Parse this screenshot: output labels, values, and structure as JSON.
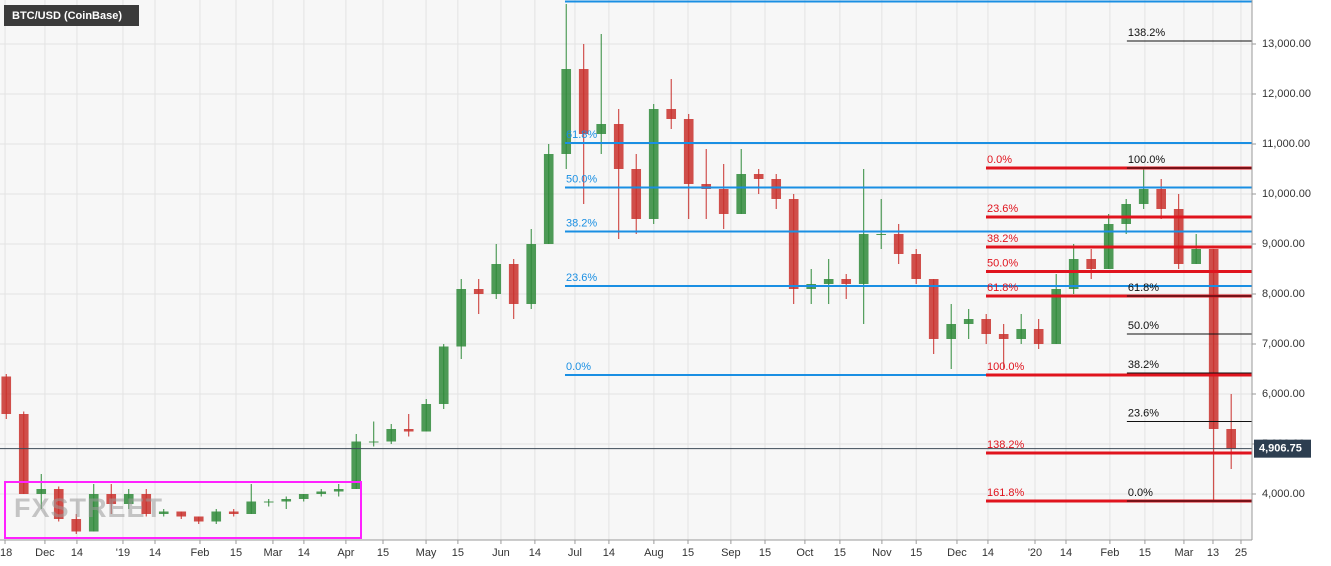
{
  "chart_data": {
    "type": "candlestick",
    "title": "BTC/USD (CoinBase)",
    "watermark": "FXSTREET",
    "up_color": "#2f8a3a",
    "down_color": "#c9302c",
    "grid": true,
    "open": [
      6350,
      5600,
      4000,
      4100,
      3500,
      3250,
      4000,
      3800,
      4000,
      3600,
      3650,
      3550,
      3450,
      3650,
      3600,
      3850,
      3850,
      3900,
      4000,
      4050,
      4100,
      5050,
      5050,
      5300,
      5250,
      5800,
      6950,
      8100,
      8000,
      8600,
      7800,
      9000,
      10800,
      12500,
      11200,
      11400,
      10500,
      9500,
      11700,
      11500,
      10200,
      10100,
      9600,
      10400,
      10300,
      9900,
      8100,
      8200,
      8300,
      8200,
      9200,
      9200,
      8800,
      8300,
      7100,
      7400,
      7500,
      7200,
      7100,
      7300,
      7000,
      8100,
      8700,
      8500,
      9400,
      9800,
      10100,
      9700,
      8600,
      8900,
      5300
    ],
    "high": [
      6400,
      5650,
      4400,
      4150,
      3600,
      4200,
      4200,
      4100,
      4100,
      3700,
      3650,
      3550,
      3700,
      3700,
      4200,
      3900,
      3950,
      4000,
      4100,
      4200,
      5200,
      5450,
      5400,
      5600,
      5900,
      7000,
      8300,
      8300,
      9000,
      8700,
      9300,
      11000,
      13800,
      13000,
      13200,
      11700,
      10800,
      11800,
      12300,
      11600,
      10900,
      10600,
      10900,
      10500,
      10400,
      10000,
      8500,
      8700,
      8400,
      10500,
      9900,
      9400,
      8900,
      8300,
      7800,
      7700,
      7600,
      7400,
      7600,
      7500,
      8400,
      9000,
      8900,
      9600,
      9900,
      10500,
      10300,
      10000,
      9200,
      8900,
      6000
    ],
    "low": [
      5500,
      4000,
      3700,
      3450,
      3200,
      3250,
      3600,
      3700,
      3550,
      3550,
      3500,
      3400,
      3400,
      3550,
      3600,
      3750,
      3700,
      3850,
      3950,
      3950,
      4100,
      4950,
      5000,
      5150,
      5250,
      5700,
      6700,
      7600,
      7900,
      7500,
      7700,
      9000,
      10500,
      9800,
      10800,
      9100,
      9200,
      9400,
      11300,
      9500,
      9500,
      9300,
      9600,
      10000,
      9700,
      7800,
      7800,
      7800,
      7900,
      7400,
      8900,
      8600,
      8200,
      6800,
      6500,
      7100,
      7000,
      6500,
      7000,
      6900,
      7000,
      8000,
      8300,
      8500,
      9200,
      9700,
      9500,
      8500,
      8600,
      3860,
      4500
    ],
    "close": [
      5600,
      4000,
      4100,
      3500,
      3250,
      4000,
      3800,
      4000,
      3600,
      3650,
      3550,
      3450,
      3650,
      3600,
      3850,
      3850,
      3900,
      4000,
      4050,
      4100,
      5050,
      5050,
      5300,
      5250,
      5800,
      6950,
      8100,
      8000,
      8600,
      7800,
      9000,
      10800,
      12500,
      11200,
      11400,
      10500,
      9500,
      11700,
      11500,
      10200,
      10100,
      9600,
      10400,
      10300,
      9900,
      8100,
      8200,
      8300,
      8200,
      9200,
      9200,
      8800,
      8300,
      7100,
      7400,
      7500,
      7200,
      7100,
      7300,
      7000,
      8100,
      8700,
      8500,
      9400,
      9800,
      10100,
      9700,
      8600,
      8900,
      5300,
      4906.75
    ],
    "last_price": {
      "value": 4906.75,
      "label": "4,906.75"
    },
    "xlim": [
      -0.357,
      71.19
    ],
    "xticks": [
      {
        "value": -0.07,
        "label": "'18"
      },
      {
        "value": 2.21,
        "label": "Dec"
      },
      {
        "value": 4.04,
        "label": "14"
      },
      {
        "value": 6.67,
        "label": "'19"
      },
      {
        "value": 8.5,
        "label": "14"
      },
      {
        "value": 11.07,
        "label": "Feb"
      },
      {
        "value": 13.13,
        "label": "15"
      },
      {
        "value": 15.24,
        "label": "Mar"
      },
      {
        "value": 17.01,
        "label": "14"
      },
      {
        "value": 19.41,
        "label": "Apr"
      },
      {
        "value": 21.53,
        "label": "15"
      },
      {
        "value": 23.99,
        "label": "May"
      },
      {
        "value": 25.81,
        "label": "15"
      },
      {
        "value": 28.27,
        "label": "Jun"
      },
      {
        "value": 30.21,
        "label": "14"
      },
      {
        "value": 32.5,
        "label": "Jul"
      },
      {
        "value": 34.44,
        "label": "14"
      },
      {
        "value": 37.01,
        "label": "Aug"
      },
      {
        "value": 38.96,
        "label": "15"
      },
      {
        "value": 41.41,
        "label": "Sep"
      },
      {
        "value": 43.36,
        "label": "15"
      },
      {
        "value": 45.64,
        "label": "Oct"
      },
      {
        "value": 47.64,
        "label": "15"
      },
      {
        "value": 50.04,
        "label": "Nov"
      },
      {
        "value": 52.0,
        "label": "15"
      },
      {
        "value": 54.33,
        "label": "Dec"
      },
      {
        "value": 56.1,
        "label": "14"
      },
      {
        "value": 58.79,
        "label": "'20"
      },
      {
        "value": 60.56,
        "label": "14"
      },
      {
        "value": 63.07,
        "label": "Feb"
      },
      {
        "value": 65.07,
        "label": "15"
      },
      {
        "value": 67.3,
        "label": "Mar"
      },
      {
        "value": 68.96,
        "label": "13"
      },
      {
        "value": 70.56,
        "label": "25"
      }
    ],
    "ylim": [
      3080,
      13880
    ],
    "yticks": [
      {
        "value": 4000,
        "label": "4,000.00"
      },
      {
        "value": 5000,
        "label": "5,000.00"
      },
      {
        "value": 6000,
        "label": "6,000.00"
      },
      {
        "value": 7000,
        "label": "7,000.00"
      },
      {
        "value": 8000,
        "label": "8,000.00"
      },
      {
        "value": 9000,
        "label": "9,000.00"
      },
      {
        "value": 10000,
        "label": "10,000.00"
      },
      {
        "value": 11000,
        "label": "11,000.00"
      },
      {
        "value": 12000,
        "label": "12,000.00"
      },
      {
        "value": 13000,
        "label": "13,000.00"
      }
    ],
    "fib_sets": [
      {
        "color": "#1a8fe3",
        "from": 31.93,
        "levels": [
          {
            "value": 13850
          },
          {
            "value": 11020,
            "label": "61.8%"
          },
          {
            "value": 10130,
            "label": "50.0%"
          },
          {
            "value": 9250,
            "label": "38.2%"
          },
          {
            "value": 8160,
            "label": "23.6%"
          },
          {
            "value": 6380,
            "label": "0.0%"
          }
        ]
      },
      {
        "color": "#e0141e",
        "from": 55.99,
        "levels": [
          {
            "value": 10520,
            "label": "0.0%"
          },
          {
            "value": 9540,
            "label": "23.6%"
          },
          {
            "value": 8940,
            "label": "38.2%"
          },
          {
            "value": 8450,
            "label": "50.0%"
          },
          {
            "value": 7960,
            "label": "61.8%"
          },
          {
            "value": 6380,
            "label": "100.0%"
          },
          {
            "value": 4820,
            "label": "138.2%"
          },
          {
            "value": 3860,
            "label": "161.8%"
          }
        ]
      },
      {
        "color": "#111111",
        "from": 64.04,
        "levels": [
          {
            "value": 13060,
            "label": "138.2%"
          },
          {
            "value": 10520,
            "label": "100.0%"
          },
          {
            "value": 7960,
            "label": "61.8%"
          },
          {
            "value": 7200,
            "label": "50.0%"
          },
          {
            "value": 6420,
            "label": "38.2%"
          },
          {
            "value": 5450,
            "label": "23.6%"
          },
          {
            "value": 3860,
            "label": "0.0%"
          }
        ]
      }
    ]
  }
}
